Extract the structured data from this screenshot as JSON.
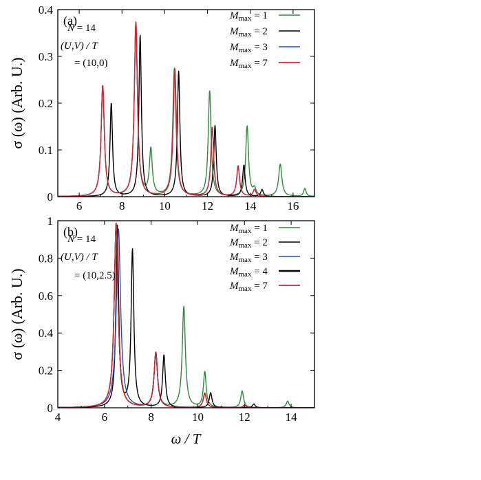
{
  "x_axis_label": "ω / T",
  "chart_data": [
    {
      "type": "line",
      "panel_label": "(a)",
      "ylabel": "σ (ω) (Arb. U.)",
      "xlabel": "",
      "xlim": [
        5,
        17
      ],
      "ylim": [
        0,
        0.4
      ],
      "x_ticks": [
        "6",
        "8",
        "10",
        "12",
        "14",
        "16"
      ],
      "y_ticks": [
        "0",
        "0.1",
        "0.2",
        "0.3",
        "0.4"
      ],
      "annotation": {
        "line1": "N = 14",
        "line2": "(U,V) / T",
        "line3": "= (10,0)"
      },
      "legend_position": "top-right",
      "series": [
        {
          "name": "M_max = 1",
          "color": "#2e8b3c",
          "width": 1.4,
          "peaks": [
            [
              7.1,
              0.237,
              0.09
            ],
            [
              8.65,
              0.372,
              0.09
            ],
            [
              9.35,
              0.098,
              0.08
            ],
            [
              10.45,
              0.273,
              0.09
            ],
            [
              12.1,
              0.226,
              0.08
            ],
            [
              13.85,
              0.15,
              0.08
            ],
            [
              14.2,
              0.015,
              0.08
            ],
            [
              15.4,
              0.069,
              0.09
            ],
            [
              16.55,
              0.017,
              0.07
            ]
          ]
        },
        {
          "name": "M_max = 2",
          "color": "#000000",
          "width": 1.2,
          "peaks": [
            [
              7.5,
              0.2,
              0.07
            ],
            [
              8.85,
              0.345,
              0.07
            ],
            [
              10.65,
              0.268,
              0.07
            ],
            [
              12.35,
              0.152,
              0.07
            ],
            [
              13.7,
              0.067,
              0.07
            ],
            [
              14.55,
              0.015,
              0.07
            ]
          ]
        },
        {
          "name": "M_max = 3",
          "color": "#1f4fbf",
          "width": 1.4,
          "peaks": [
            [
              7.1,
              0.236,
              0.09
            ],
            [
              8.65,
              0.37,
              0.09
            ],
            [
              10.47,
              0.27,
              0.09
            ],
            [
              12.22,
              0.147,
              0.08
            ],
            [
              13.43,
              0.065,
              0.08
            ],
            [
              14.2,
              0.015,
              0.08
            ]
          ]
        },
        {
          "name": "M_max = 7",
          "color": "#e0202a",
          "width": 1.6,
          "peaks": [
            [
              7.1,
              0.237,
              0.09
            ],
            [
              8.65,
              0.372,
              0.09
            ],
            [
              10.47,
              0.273,
              0.09
            ],
            [
              12.22,
              0.148,
              0.08
            ],
            [
              13.43,
              0.065,
              0.08
            ],
            [
              14.2,
              0.015,
              0.08
            ]
          ]
        }
      ]
    },
    {
      "type": "line",
      "panel_label": "(b)",
      "ylabel": "σ (ω) (Arb. U.)",
      "xlabel": "ω / T",
      "xlim": [
        4,
        15
      ],
      "ylim": [
        0,
        1
      ],
      "x_ticks": [
        "4",
        "6",
        "8",
        "10",
        "12",
        "14"
      ],
      "y_ticks": [
        "0",
        "0.2",
        "0.4",
        "0.6",
        "0.8",
        "1"
      ],
      "annotation": {
        "line1": "N = 14",
        "line2": "(U,V) / T",
        "line3": "= (10,2.5)"
      },
      "legend_position": "top-right",
      "series": [
        {
          "name": "M_max = 1",
          "color": "#2e8b3c",
          "width": 1.4,
          "peaks": [
            [
              6.5,
              0.985,
              0.1
            ],
            [
              8.2,
              0.29,
              0.09
            ],
            [
              9.4,
              0.54,
              0.08
            ],
            [
              10.3,
              0.19,
              0.07
            ],
            [
              11.9,
              0.09,
              0.07
            ],
            [
              13.85,
              0.035,
              0.07
            ]
          ]
        },
        {
          "name": "M_max = 2",
          "color": "#000000",
          "width": 1.2,
          "peaks": [
            [
              6.55,
              0.97,
              0.07
            ],
            [
              7.2,
              0.84,
              0.07
            ],
            [
              8.55,
              0.28,
              0.07
            ],
            [
              10.55,
              0.08,
              0.07
            ],
            [
              12.4,
              0.02,
              0.07
            ]
          ]
        },
        {
          "name": "M_max = 3",
          "color": "#1f4fbf",
          "width": 1.4,
          "peaks": [
            [
              6.6,
              0.955,
              0.11
            ],
            [
              8.2,
              0.285,
              0.09
            ],
            [
              10.3,
              0.075,
              0.08
            ],
            [
              12.0,
              0.012,
              0.08
            ]
          ]
        },
        {
          "name": "M_max = 4",
          "color": "#000000",
          "width": 2.2,
          "peaks": [
            [
              6.5,
              0.985,
              0.1
            ],
            [
              8.2,
              0.295,
              0.09
            ],
            [
              10.3,
              0.078,
              0.08
            ],
            [
              12.0,
              0.012,
              0.08
            ]
          ]
        },
        {
          "name": "M_max = 7",
          "color": "#e0202a",
          "width": 1.6,
          "peaks": [
            [
              6.5,
              0.99,
              0.1
            ],
            [
              8.2,
              0.295,
              0.09
            ],
            [
              10.3,
              0.078,
              0.08
            ],
            [
              12.0,
              0.012,
              0.08
            ]
          ]
        }
      ]
    }
  ]
}
